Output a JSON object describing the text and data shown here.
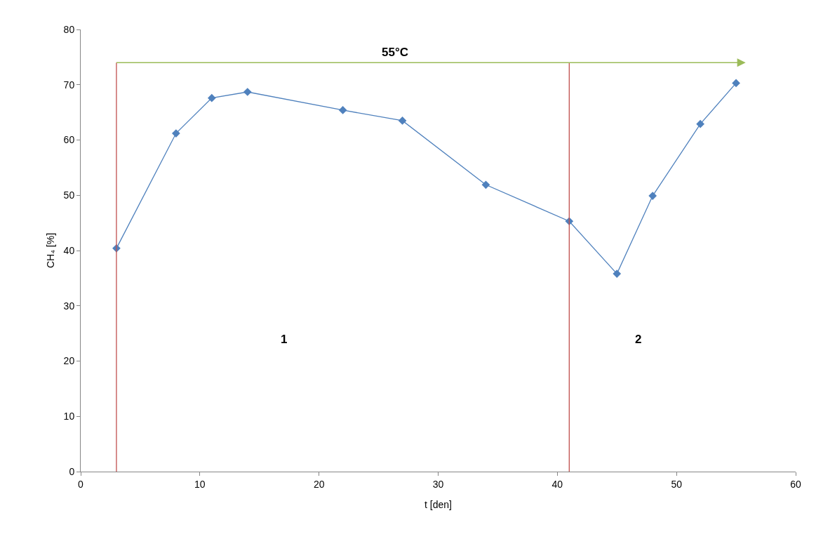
{
  "chart_data": {
    "type": "line",
    "xlabel": "t [den]",
    "ylabel": "CH₄ [%]",
    "x": [
      3,
      8,
      11,
      14,
      22,
      27,
      34,
      41,
      45,
      48,
      52,
      55
    ],
    "series": [
      {
        "color": "#4f81bd",
        "values": [
          40.4,
          61.2,
          67.6,
          68.7,
          65.4,
          63.5,
          51.9,
          45.3,
          35.8,
          49.9,
          62.9,
          70.3
        ]
      }
    ],
    "xlim": [
      0,
      60
    ],
    "xticks": [
      0,
      10,
      20,
      30,
      40,
      50,
      60
    ],
    "ylim": [
      0,
      80
    ],
    "yticks": [
      0,
      10,
      20,
      30,
      40,
      50,
      60,
      70,
      80
    ],
    "grid": false,
    "marker": "diamond",
    "line_style": "solid",
    "ref_lines": [
      {
        "axis": "x",
        "value": 3,
        "color": "#c0504d"
      },
      {
        "axis": "x",
        "value": 41,
        "color": "#c0504d"
      }
    ],
    "annotations": [
      "55°C",
      "1",
      "2"
    ]
  }
}
